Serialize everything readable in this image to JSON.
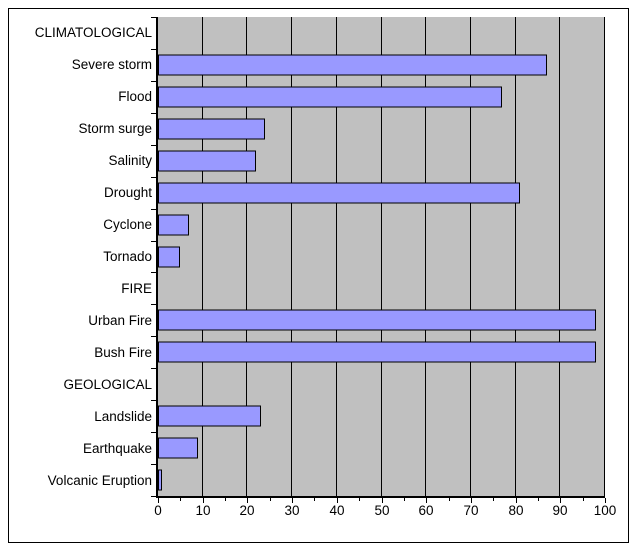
{
  "chart_data": {
    "type": "bar",
    "orientation": "horizontal",
    "categories": [
      "CLIMATOLOGICAL",
      "Severe storm",
      "Flood",
      "Storm surge",
      "Salinity",
      "Drought",
      "Cyclone",
      "Tornado",
      "FIRE",
      "Urban Fire",
      "Bush Fire",
      "GEOLOGICAL",
      "Landslide",
      "Earthquake",
      "Volcanic Eruption"
    ],
    "values": [
      null,
      87,
      77,
      24,
      22,
      81,
      7,
      5,
      null,
      98,
      98,
      null,
      23,
      9,
      1
    ],
    "header_rows": [
      "CLIMATOLOGICAL",
      "FIRE",
      "GEOLOGICAL"
    ],
    "xlim": [
      0,
      100
    ],
    "x_ticks": [
      0,
      10,
      20,
      30,
      40,
      50,
      60,
      70,
      80,
      90,
      100
    ],
    "x_minor_tick_step": 5,
    "grid": true,
    "legend": "none",
    "colors": {
      "bar_fill": "#9999FF",
      "bar_border": "#000000",
      "plot_background": "#C0C0C0",
      "chart_background": "#FFFFFF",
      "line": "#000000",
      "text": "#000000"
    }
  }
}
